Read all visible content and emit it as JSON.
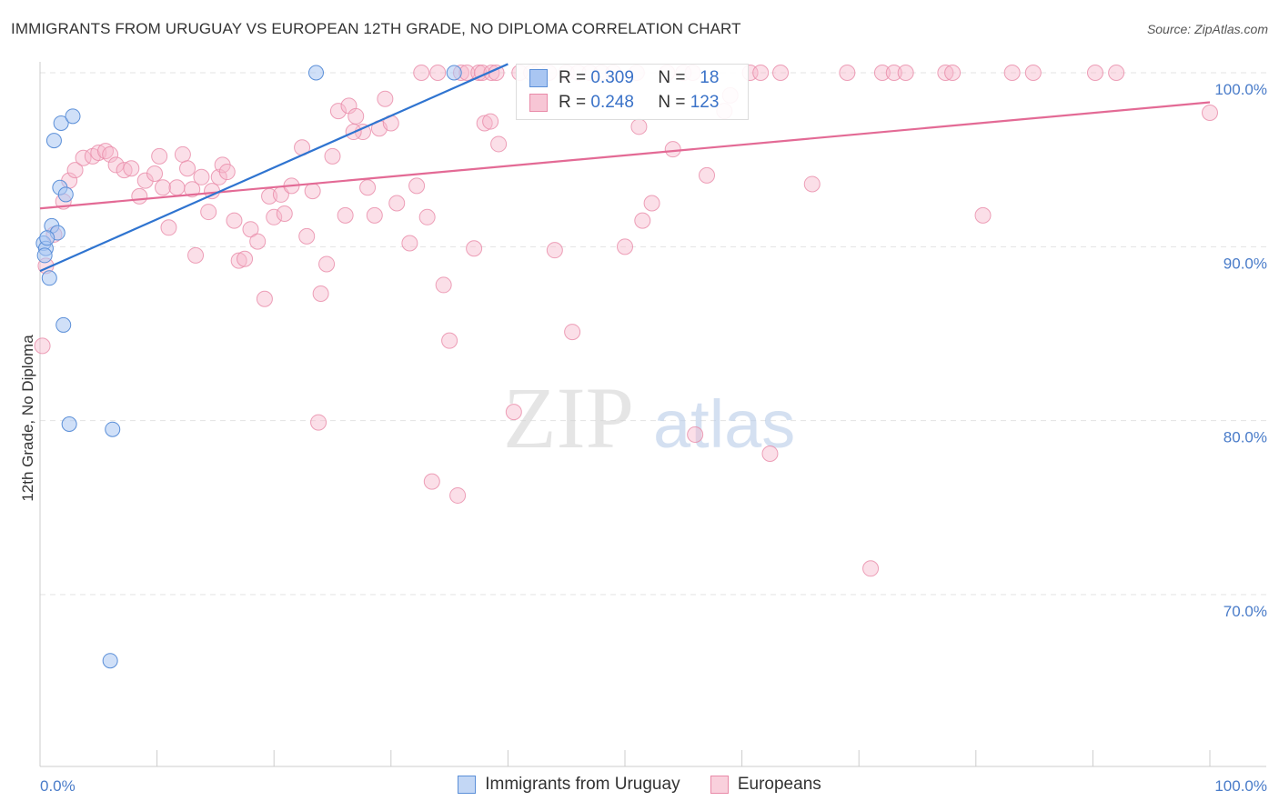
{
  "title": "IMMIGRANTS FROM URUGUAY VS EUROPEAN 12TH GRADE, NO DIPLOMA CORRELATION CHART",
  "source": "Source: ZipAtlas.com",
  "watermark": {
    "zip": "ZIP",
    "atlas": "atlas"
  },
  "legend_top": {
    "rows": [
      {
        "r_label": "R =",
        "r_value": "0.309",
        "n_label": "N =",
        "n_value": "18"
      },
      {
        "r_label": "R =",
        "r_value": "0.248",
        "n_label": "N =",
        "n_value": "123"
      }
    ]
  },
  "legend_bottom": [
    {
      "label": "Immigrants from Uruguay"
    },
    {
      "label": "Europeans"
    }
  ],
  "colors": {
    "uruguay_fill": "#a9c6f2",
    "uruguay_stroke": "#5b8fd8",
    "uruguay_line": "#2f74d0",
    "europe_fill": "#f7b8cb",
    "europe_stroke": "#e98aa8",
    "europe_line": "#e36a95",
    "tick_text": "#4a7cc9",
    "grid": "#e3e3e3"
  },
  "chart_data": {
    "type": "scatter",
    "title": "IMMIGRANTS FROM URUGUAY VS EUROPEAN 12TH GRADE, NO DIPLOMA CORRELATION CHART",
    "xlabel": "",
    "ylabel": "12th Grade, No Diploma",
    "xlim": [
      0,
      100
    ],
    "ylim": [
      60,
      101.5
    ],
    "x_tick_labels": [
      "0.0%",
      "100.0%"
    ],
    "y_ticks": [
      70,
      80,
      90,
      100
    ],
    "y_tick_labels": [
      "70.0%",
      "80.0%",
      "90.0%",
      "100.0%"
    ],
    "grid": true,
    "legend_position": "bottom",
    "series": [
      {
        "name": "Immigrants from Uruguay",
        "points": [
          [
            0.3,
            90.2
          ],
          [
            0.5,
            89.9
          ],
          [
            0.8,
            88.2
          ],
          [
            1.0,
            91.2
          ],
          [
            1.2,
            96.1
          ],
          [
            1.5,
            90.8
          ],
          [
            1.7,
            93.4
          ],
          [
            1.8,
            97.1
          ],
          [
            2.0,
            85.5
          ],
          [
            2.2,
            93.0
          ],
          [
            2.5,
            79.8
          ],
          [
            2.8,
            97.5
          ],
          [
            6.2,
            79.5
          ],
          [
            6.0,
            66.2
          ],
          [
            23.6,
            100.0
          ],
          [
            35.4,
            100.0
          ],
          [
            0.6,
            90.5
          ],
          [
            0.4,
            89.5
          ]
        ],
        "trend": {
          "x0": 0,
          "y0": 88.6,
          "x1": 40,
          "y1": 100.5
        }
      },
      {
        "name": "Europeans",
        "points": [
          [
            0.2,
            84.3
          ],
          [
            0.5,
            88.9
          ],
          [
            1.2,
            90.7
          ],
          [
            2.0,
            92.6
          ],
          [
            2.5,
            93.8
          ],
          [
            3.0,
            94.4
          ],
          [
            3.7,
            95.1
          ],
          [
            4.5,
            95.2
          ],
          [
            5.0,
            95.4
          ],
          [
            5.6,
            95.5
          ],
          [
            6.0,
            95.3
          ],
          [
            6.5,
            94.7
          ],
          [
            7.2,
            94.4
          ],
          [
            7.8,
            94.5
          ],
          [
            8.5,
            92.9
          ],
          [
            9.0,
            93.8
          ],
          [
            9.8,
            94.2
          ],
          [
            10.2,
            95.2
          ],
          [
            10.5,
            93.4
          ],
          [
            11.0,
            91.1
          ],
          [
            11.7,
            93.4
          ],
          [
            12.2,
            95.3
          ],
          [
            12.6,
            94.5
          ],
          [
            13.0,
            93.3
          ],
          [
            13.3,
            89.5
          ],
          [
            13.8,
            94.0
          ],
          [
            14.4,
            92.0
          ],
          [
            14.7,
            93.2
          ],
          [
            15.3,
            94.0
          ],
          [
            15.6,
            94.7
          ],
          [
            16.0,
            94.3
          ],
          [
            16.6,
            91.5
          ],
          [
            17.0,
            89.2
          ],
          [
            17.5,
            89.3
          ],
          [
            18.0,
            91.0
          ],
          [
            18.6,
            90.3
          ],
          [
            19.2,
            87.0
          ],
          [
            19.6,
            92.9
          ],
          [
            20.0,
            91.7
          ],
          [
            20.6,
            93.0
          ],
          [
            20.9,
            91.9
          ],
          [
            21.5,
            93.5
          ],
          [
            22.4,
            95.7
          ],
          [
            22.8,
            90.6
          ],
          [
            23.3,
            93.2
          ],
          [
            24.0,
            87.3
          ],
          [
            24.5,
            89.0
          ],
          [
            25.0,
            95.2
          ],
          [
            25.5,
            97.8
          ],
          [
            26.1,
            91.8
          ],
          [
            26.4,
            98.1
          ],
          [
            27.0,
            97.5
          ],
          [
            27.6,
            96.6
          ],
          [
            28.0,
            93.4
          ],
          [
            28.6,
            91.8
          ],
          [
            29.0,
            96.8
          ],
          [
            29.5,
            98.5
          ],
          [
            30.0,
            97.1
          ],
          [
            30.5,
            92.5
          ],
          [
            31.6,
            90.2
          ],
          [
            32.2,
            93.5
          ],
          [
            32.6,
            100.0
          ],
          [
            33.1,
            91.7
          ],
          [
            34.0,
            100.0
          ],
          [
            34.5,
            87.8
          ],
          [
            35.0,
            84.6
          ],
          [
            35.7,
            75.7
          ],
          [
            36.0,
            100.0
          ],
          [
            36.5,
            100.0
          ],
          [
            37.1,
            89.9
          ],
          [
            37.5,
            100.0
          ],
          [
            37.8,
            100.0
          ],
          [
            38.0,
            97.1
          ],
          [
            38.6,
            100.0
          ],
          [
            39.0,
            100.0
          ],
          [
            39.2,
            95.9
          ],
          [
            40.5,
            80.5
          ],
          [
            41.0,
            100.0
          ],
          [
            42.0,
            100.0
          ],
          [
            42.6,
            100.0
          ],
          [
            43.5,
            100.0
          ],
          [
            44.0,
            89.8
          ],
          [
            45.0,
            100.0
          ],
          [
            45.5,
            85.1
          ],
          [
            46.0,
            100.0
          ],
          [
            47.0,
            100.0
          ],
          [
            48.0,
            100.0
          ],
          [
            49.0,
            100.0
          ],
          [
            50.0,
            90.0
          ],
          [
            51.0,
            100.0
          ],
          [
            51.2,
            96.9
          ],
          [
            51.5,
            91.5
          ],
          [
            52.3,
            92.5
          ],
          [
            53.6,
            100.0
          ],
          [
            54.1,
            95.6
          ],
          [
            55.0,
            100.0
          ],
          [
            55.8,
            100.0
          ],
          [
            56.0,
            79.2
          ],
          [
            57.0,
            94.1
          ],
          [
            58.5,
            97.8
          ],
          [
            59.0,
            98.7
          ],
          [
            60.7,
            100.0
          ],
          [
            61.6,
            100.0
          ],
          [
            62.4,
            78.1
          ],
          [
            63.3,
            100.0
          ],
          [
            66.0,
            93.6
          ],
          [
            69.0,
            100.0
          ],
          [
            71.0,
            71.5
          ],
          [
            72.0,
            100.0
          ],
          [
            73.0,
            100.0
          ],
          [
            74.0,
            100.0
          ],
          [
            77.4,
            100.0
          ],
          [
            78.0,
            100.0
          ],
          [
            80.6,
            91.8
          ],
          [
            83.1,
            100.0
          ],
          [
            84.9,
            100.0
          ],
          [
            90.2,
            100.0
          ],
          [
            92.0,
            100.0
          ],
          [
            100.0,
            97.7
          ],
          [
            23.8,
            79.9
          ],
          [
            26.8,
            96.6
          ],
          [
            38.5,
            97.2
          ],
          [
            33.5,
            76.5
          ]
        ],
        "trend": {
          "x0": 0,
          "y0": 92.2,
          "x1": 100,
          "y1": 98.3
        }
      }
    ]
  }
}
